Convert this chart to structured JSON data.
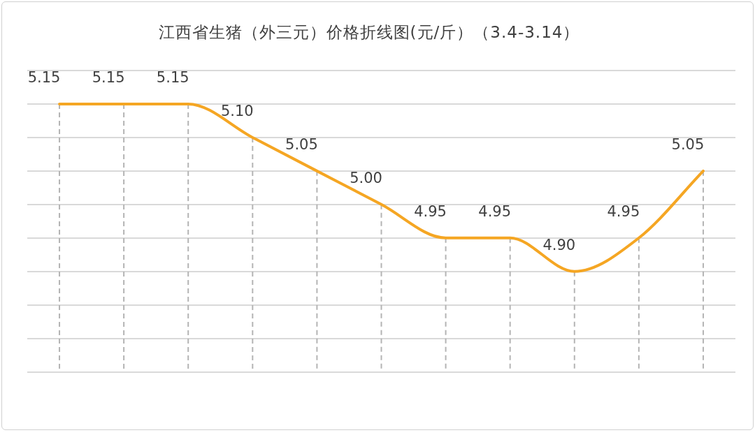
{
  "chart_data": {
    "type": "line",
    "title": "江西省生猪（外三元）价格折线图(元/斤）（3.4-3.14）",
    "categories": [
      null,
      null,
      null,
      null,
      null,
      null,
      null,
      null,
      null,
      null,
      null
    ],
    "series": [
      {
        "color": "#f5a623",
        "values": [
          5.15,
          5.15,
          5.15,
          5.1,
          5.05,
          5.0,
          4.95,
          4.95,
          4.9,
          4.95,
          5.05
        ],
        "value_labels": [
          "5.15",
          "5.15",
          "5.15",
          "5.10",
          "5.05",
          "5.00",
          "4.95",
          "4.95",
          "4.90",
          "4.95",
          "5.05"
        ]
      }
    ],
    "ylim": [
      4.75,
      5.2
    ],
    "yticks": [
      {
        "value": 4.75,
        "label": null
      },
      {
        "value": 4.8,
        "label": null
      },
      {
        "value": 4.85,
        "label": null
      },
      {
        "value": 4.9,
        "label": null
      },
      {
        "value": 4.95,
        "label": null
      },
      {
        "value": 5.0,
        "label": null
      },
      {
        "value": 5.05,
        "label": null
      },
      {
        "value": 5.1,
        "label": null
      },
      {
        "value": 5.15,
        "label": null
      },
      {
        "value": 5.2,
        "label": null
      }
    ],
    "grid": true,
    "legend": false,
    "marker": "none",
    "line_style": "solid"
  }
}
